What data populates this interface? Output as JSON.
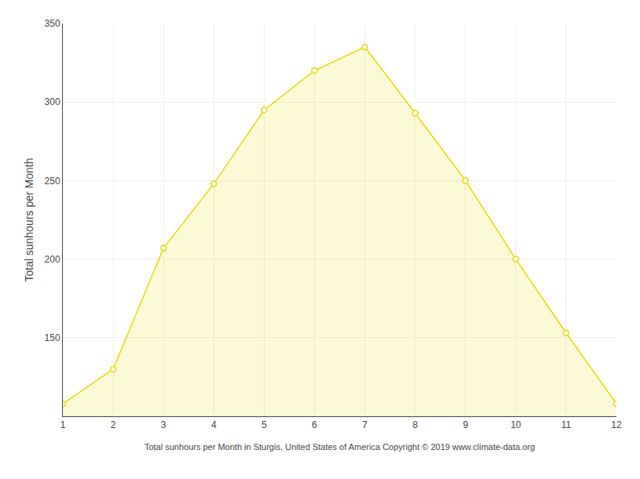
{
  "chart_data": {
    "type": "area",
    "x": [
      1,
      2,
      3,
      4,
      5,
      6,
      7,
      8,
      9,
      10,
      11,
      12
    ],
    "values": [
      108,
      130,
      207,
      248,
      295,
      320,
      335,
      293,
      250,
      200,
      153,
      108
    ],
    "xlim": [
      1,
      12
    ],
    "ylim": [
      100,
      350
    ],
    "xticks": [
      1,
      2,
      3,
      4,
      5,
      6,
      7,
      8,
      9,
      10,
      11,
      12
    ],
    "yticks": [
      150,
      200,
      250,
      300,
      350
    ],
    "xlabel": "Total sunhours per Month in Sturgis, United States of America Copyright © 2019 www.climate-data.org",
    "ylabel": "Total sunhours per Month",
    "grid": true,
    "color": "#E8D800",
    "marker": "circle"
  }
}
